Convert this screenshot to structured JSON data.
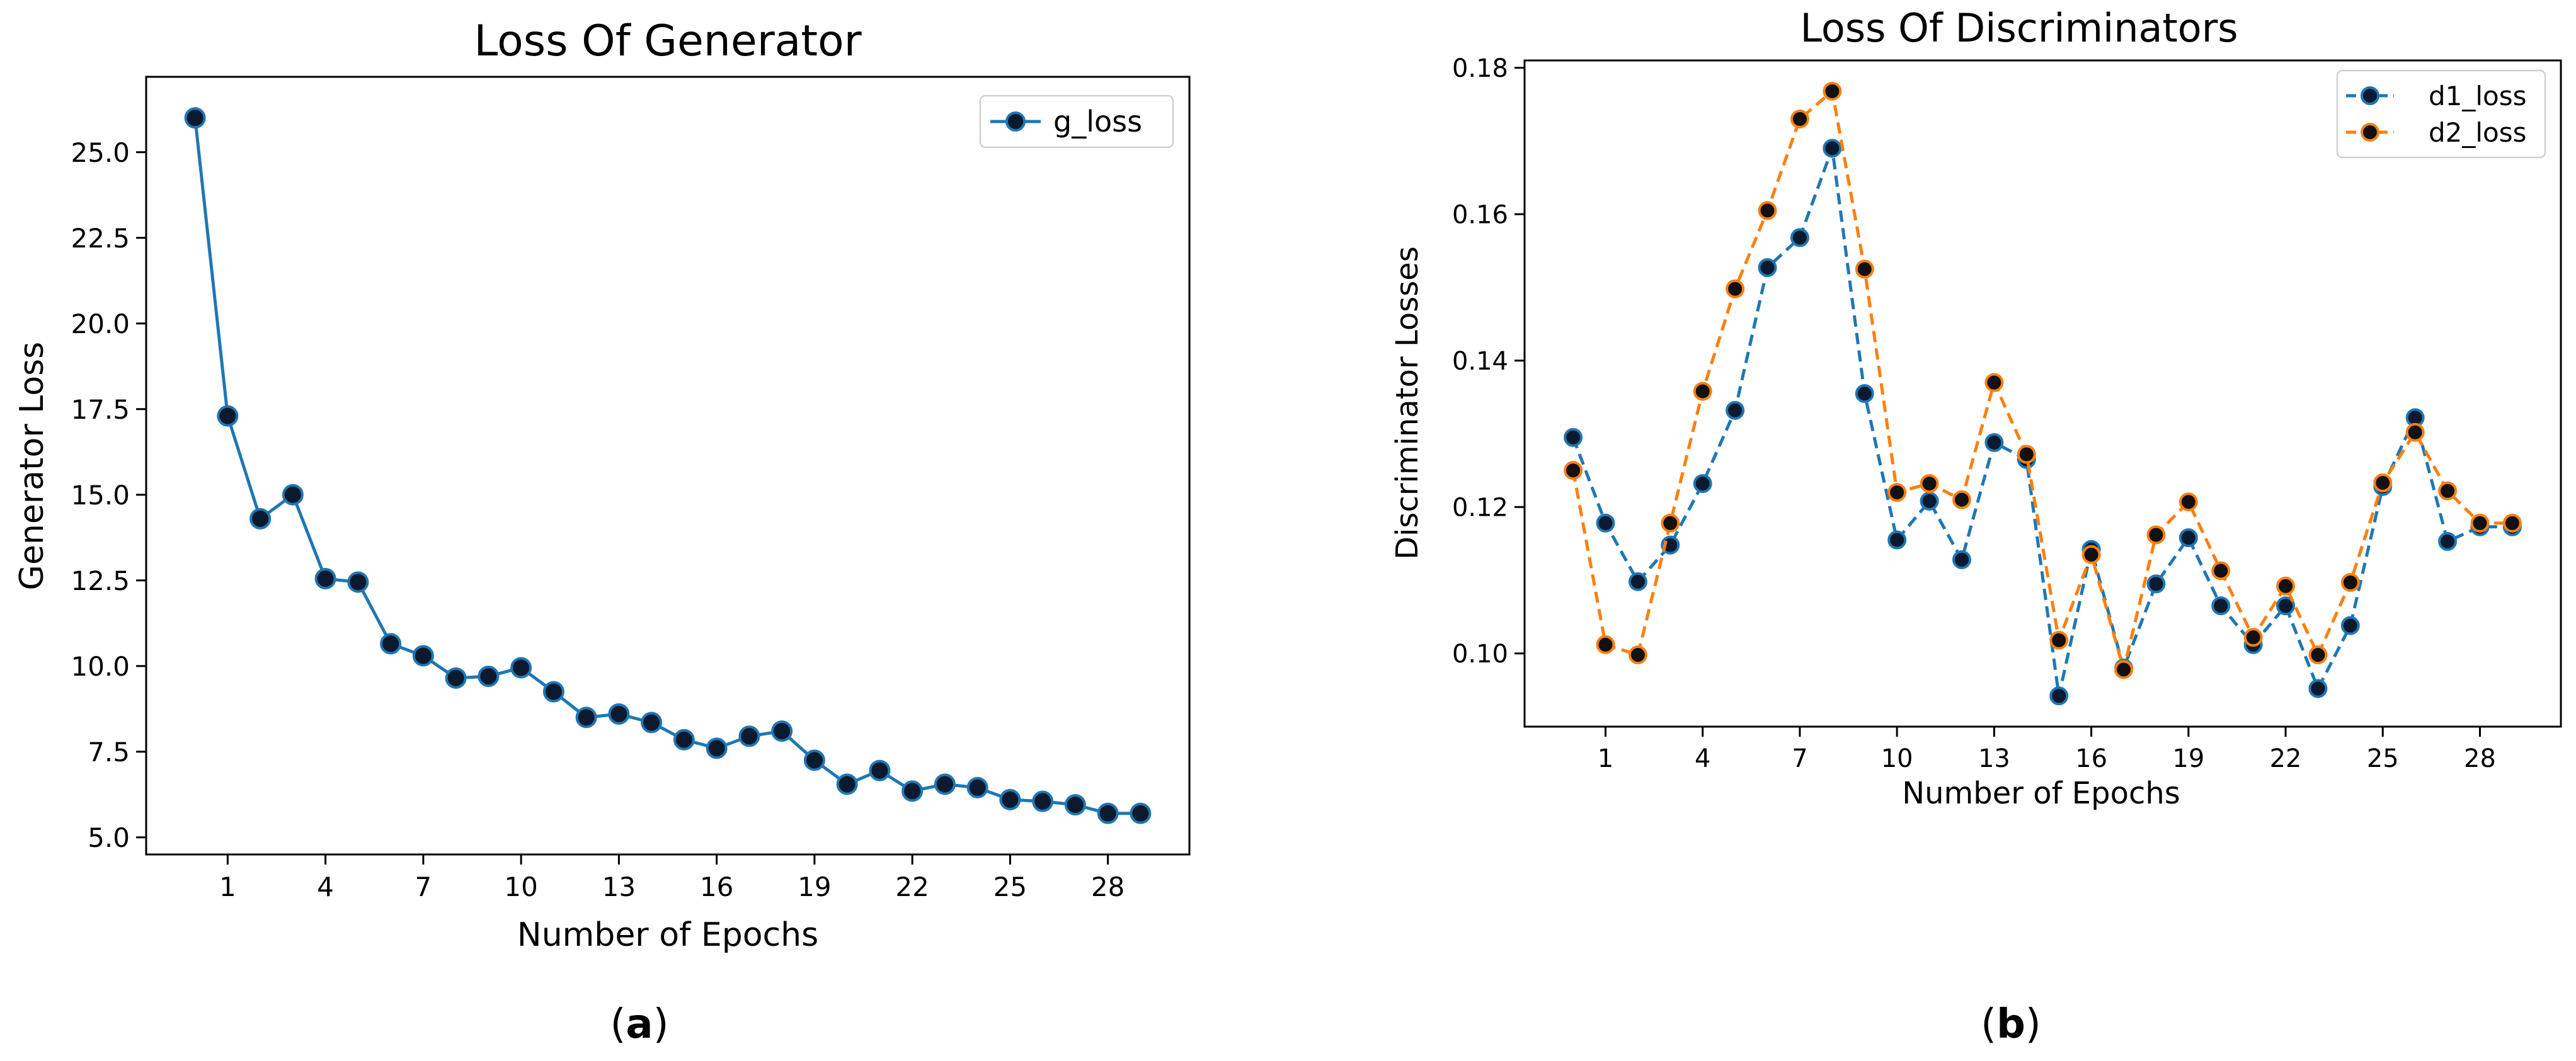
{
  "chart_data": [
    {
      "type": "line",
      "panel_label": "a",
      "title": "Loss Of Generator",
      "xlabel": "Number of Epochs",
      "ylabel": "Generator Loss",
      "xlim": [
        -1.5,
        30.5
      ],
      "ylim": [
        4.5,
        27.2
      ],
      "xticks": [
        "1",
        "4",
        "7",
        "10",
        "13",
        "16",
        "19",
        "22",
        "25",
        "28"
      ],
      "yticks": [
        "5.0",
        "7.5",
        "10.0",
        "12.5",
        "15.0",
        "17.5",
        "20.0",
        "22.5",
        "25.0"
      ],
      "legend_position": "top-right",
      "series": [
        {
          "name": "g_loss",
          "line_style": "solid",
          "line_color": "#1f77b4",
          "marker_face": "#0b1a2e",
          "x": [
            0,
            1,
            2,
            3,
            4,
            5,
            6,
            7,
            8,
            9,
            10,
            11,
            12,
            13,
            14,
            15,
            16,
            17,
            18,
            19,
            20,
            21,
            22,
            23,
            24,
            25,
            26,
            27,
            28,
            29
          ],
          "values": [
            26.0,
            17.3,
            14.3,
            15.0,
            12.55,
            12.45,
            10.65,
            10.3,
            9.65,
            9.7,
            9.95,
            9.25,
            8.5,
            8.6,
            8.35,
            7.85,
            7.6,
            7.95,
            8.1,
            7.25,
            6.55,
            6.95,
            6.35,
            6.55,
            6.45,
            6.1,
            6.05,
            5.95,
            5.7,
            5.7
          ]
        }
      ]
    },
    {
      "type": "line",
      "panel_label": "b",
      "title": "Loss Of Discriminators",
      "xlabel": "Number of Epochs",
      "ylabel": "Discriminator Losses",
      "xlim": [
        -1.5,
        30.5
      ],
      "ylim": [
        0.09,
        0.181
      ],
      "xticks": [
        "1",
        "4",
        "7",
        "10",
        "13",
        "16",
        "19",
        "22",
        "25",
        "28"
      ],
      "yticks": [
        "0.10",
        "0.12",
        "0.14",
        "0.16",
        "0.18"
      ],
      "legend_position": "top-right",
      "series": [
        {
          "name": "d1_loss",
          "line_style": "dashed",
          "line_color": "#1f77b4",
          "marker_face": "#0b1a2e",
          "x": [
            0,
            1,
            2,
            3,
            4,
            5,
            6,
            7,
            8,
            9,
            10,
            11,
            12,
            13,
            14,
            15,
            16,
            17,
            18,
            19,
            20,
            21,
            22,
            23,
            24,
            25,
            26,
            27,
            28,
            29
          ],
          "values": [
            0.1295,
            0.1178,
            0.1098,
            0.1148,
            0.1232,
            0.1332,
            0.1527,
            0.1568,
            0.169,
            0.1355,
            0.1155,
            0.1208,
            0.1128,
            0.1288,
            0.1265,
            0.0942,
            0.1142,
            0.098,
            0.1095,
            0.1158,
            0.1065,
            0.1012,
            0.1065,
            0.0952,
            0.1038,
            0.1228,
            0.1322,
            0.1153,
            0.1173,
            0.1173
          ]
        },
        {
          "name": "d2_loss",
          "line_style": "dashed",
          "line_color": "#ff7f0e",
          "marker_face": "#111111",
          "x": [
            0,
            1,
            2,
            3,
            4,
            5,
            6,
            7,
            8,
            9,
            10,
            11,
            12,
            13,
            14,
            15,
            16,
            17,
            18,
            19,
            20,
            21,
            22,
            23,
            24,
            25,
            26,
            27,
            28,
            29
          ],
          "values": [
            0.125,
            0.1012,
            0.0998,
            0.1178,
            0.1358,
            0.1498,
            0.1605,
            0.173,
            0.1768,
            0.1525,
            0.122,
            0.1232,
            0.121,
            0.137,
            0.1272,
            0.1018,
            0.1135,
            0.0978,
            0.1162,
            0.1207,
            0.1113,
            0.1022,
            0.1092,
            0.0998,
            0.1097,
            0.1233,
            0.1302,
            0.1222,
            0.1178,
            0.1178
          ]
        }
      ]
    }
  ]
}
